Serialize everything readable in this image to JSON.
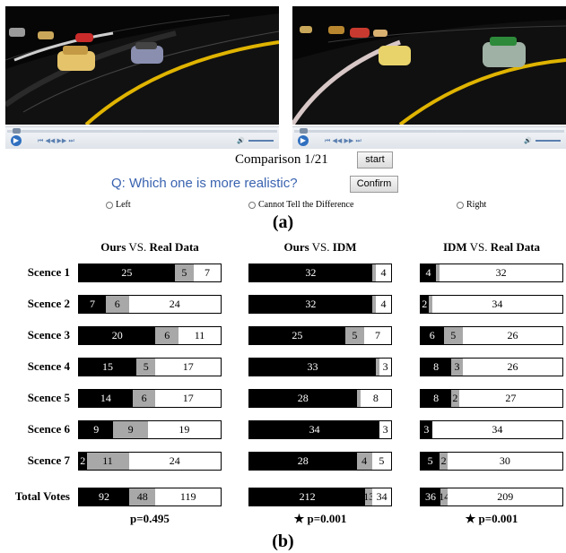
{
  "player": {
    "play_symbol": "▶",
    "controls_symbols": "⏮ ◀◀ ▶▶ ⏭",
    "volume_symbol": "🔊"
  },
  "survey": {
    "comparison_label": "Comparison 1/21",
    "start_label": "start",
    "question": "Q: Which one is more realistic?",
    "confirm_label": "Confirm",
    "options": [
      "Left",
      "Cannot Tell the Difference",
      "Right"
    ]
  },
  "captions": {
    "a": "(a)",
    "b": "(b)"
  },
  "colors": {
    "ours": "#000000",
    "cannot_tell": "#a8a8a8",
    "other": "#ffffff",
    "question": "#3a63b0"
  },
  "chart_data": {
    "type": "bar",
    "stacked": true,
    "orientation": "horizontal",
    "rows": [
      "Scence 1",
      "Scence 2",
      "Scence 3",
      "Scence 4",
      "Scence 5",
      "Scence 6",
      "Scence 7",
      "Total Votes"
    ],
    "panels": [
      {
        "title_a": "Ours",
        "title_vs": " VS. ",
        "title_b": "Real Data",
        "values": [
          [
            25,
            5,
            7
          ],
          [
            7,
            6,
            24
          ],
          [
            20,
            6,
            11
          ],
          [
            15,
            5,
            17
          ],
          [
            14,
            6,
            17
          ],
          [
            9,
            9,
            19
          ],
          [
            2,
            11,
            24
          ],
          [
            92,
            48,
            119
          ]
        ],
        "shown": [
          [
            "25",
            "5",
            "7"
          ],
          [
            "7",
            "6",
            "24"
          ],
          [
            "20",
            "6",
            "11"
          ],
          [
            "15",
            "5",
            "17"
          ],
          [
            "14",
            "6",
            "17"
          ],
          [
            "9",
            "9",
            "19"
          ],
          [
            "2",
            "11",
            "24"
          ],
          [
            "92",
            "48",
            "119"
          ]
        ],
        "p_label": "p=0.495"
      },
      {
        "title_a": "Ours",
        "title_vs": " VS. ",
        "title_b": "IDM",
        "values": [
          [
            32,
            1,
            4
          ],
          [
            32,
            1,
            4
          ],
          [
            25,
            5,
            7
          ],
          [
            33,
            1,
            3
          ],
          [
            28,
            1,
            8
          ],
          [
            34,
            0,
            3
          ],
          [
            28,
            4,
            5
          ],
          [
            212,
            13,
            34
          ]
        ],
        "shown": [
          [
            "32",
            "",
            "4"
          ],
          [
            "32",
            "",
            "4"
          ],
          [
            "25",
            "5",
            "7"
          ],
          [
            "33",
            "",
            "3"
          ],
          [
            "28",
            "",
            "8"
          ],
          [
            "34",
            "",
            "3"
          ],
          [
            "28",
            "4",
            "5"
          ],
          [
            "212",
            "13",
            "34"
          ]
        ],
        "p_label": "★ p=0.001"
      },
      {
        "title_a": "IDM",
        "title_vs": " VS. ",
        "title_b": "Real Data",
        "values": [
          [
            4,
            1,
            32
          ],
          [
            2,
            1,
            34
          ],
          [
            6,
            5,
            26
          ],
          [
            8,
            3,
            26
          ],
          [
            8,
            2,
            27
          ],
          [
            3,
            0,
            34
          ],
          [
            5,
            2,
            30
          ],
          [
            36,
            14,
            209
          ]
        ],
        "shown": [
          [
            "4",
            "",
            "32"
          ],
          [
            "2",
            "",
            "34"
          ],
          [
            "6",
            "5",
            "26"
          ],
          [
            "8",
            "3",
            "26"
          ],
          [
            "8",
            "2",
            "27"
          ],
          [
            "3",
            "",
            "34"
          ],
          [
            "5",
            "2",
            "30"
          ],
          [
            "36",
            "14",
            "209"
          ]
        ],
        "p_label": "★ p=0.001"
      }
    ]
  }
}
